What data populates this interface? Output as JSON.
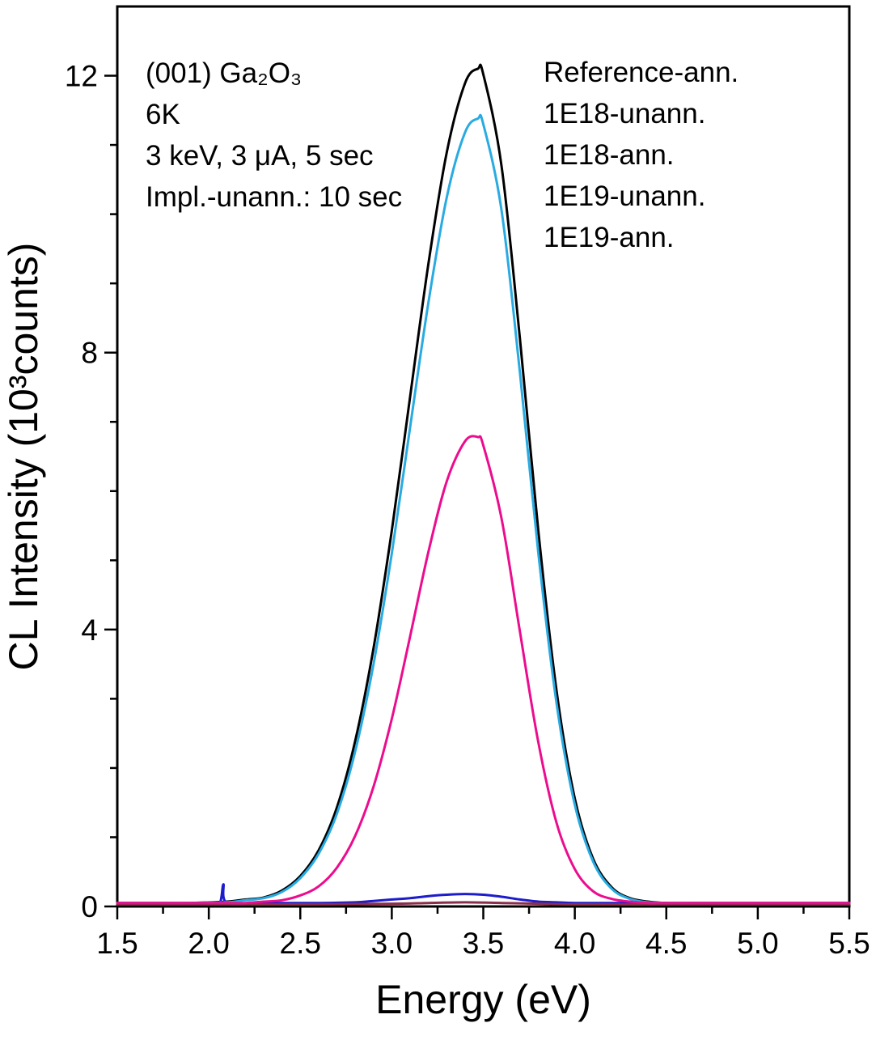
{
  "figure": {
    "background": "#ffffff"
  },
  "chart_data": {
    "type": "line",
    "title": "",
    "xlabel": "Energy (eV)",
    "ylabel": "CL Intensity (10³counts)",
    "xlim": [
      1.5,
      5.5
    ],
    "ylim": [
      0,
      13
    ],
    "grid": false,
    "legend_position": "top-right-inside",
    "x_major_ticks": [
      1.5,
      2.0,
      2.5,
      3.0,
      3.5,
      4.0,
      4.5,
      5.0,
      5.5
    ],
    "x_tick_labels": [
      "1.5",
      "2.0",
      "2.5",
      "3.0",
      "3.5",
      "4.0",
      "4.5",
      "5.0",
      "5.5"
    ],
    "x_minor_step": 0.25,
    "y_major_ticks": [
      0,
      4,
      8,
      12
    ],
    "y_tick_labels": [
      "0",
      "4",
      "8",
      "12"
    ],
    "y_minor_step": 1,
    "annotations": {
      "position": "top-left-inside",
      "lines": [
        "(001) Ga₂O₃",
        "6K",
        "3 keV, 3 μA, 5 sec",
        "Impl.-unann.: 10 sec"
      ]
    },
    "series": [
      {
        "name": "Reference-ann.",
        "color": "#000000",
        "peak_x": 3.47,
        "peak_y": 12.1,
        "x": [
          1.5,
          1.7,
          1.9,
          2.1,
          2.2,
          2.3,
          2.4,
          2.5,
          2.6,
          2.7,
          2.8,
          2.9,
          3.0,
          3.1,
          3.2,
          3.3,
          3.4,
          3.47,
          3.5,
          3.6,
          3.7,
          3.8,
          3.9,
          4.0,
          4.1,
          4.2,
          4.3,
          4.4,
          4.5,
          4.75,
          5.0,
          5.25,
          5.5
        ],
        "y": [
          0.05,
          0.05,
          0.05,
          0.07,
          0.1,
          0.13,
          0.23,
          0.44,
          0.81,
          1.43,
          2.39,
          3.73,
          5.43,
          7.36,
          9.28,
          10.89,
          11.89,
          12.1,
          12.02,
          10.69,
          8.2,
          5.44,
          3.12,
          1.56,
          0.69,
          0.28,
          0.12,
          0.07,
          0.05,
          0.05,
          0.05,
          0.05,
          0.05
        ]
      },
      {
        "name": "1E18-unann.",
        "color": "#1c1ccd",
        "peak_x": 3.4,
        "peak_y": 0.18,
        "x": [
          1.5,
          1.8,
          2.0,
          2.06,
          2.08,
          2.1,
          2.3,
          2.6,
          2.8,
          2.9,
          3.0,
          3.1,
          3.2,
          3.3,
          3.4,
          3.5,
          3.6,
          3.7,
          3.8,
          3.9,
          4.0,
          4.2,
          4.5,
          5.0,
          5.5
        ],
        "y": [
          0.05,
          0.05,
          0.05,
          0.05,
          0.32,
          0.05,
          0.05,
          0.05,
          0.06,
          0.08,
          0.1,
          0.12,
          0.15,
          0.17,
          0.18,
          0.17,
          0.14,
          0.1,
          0.07,
          0.06,
          0.05,
          0.05,
          0.05,
          0.05,
          0.05
        ]
      },
      {
        "name": "1E18-ann.",
        "color": "#29abe2",
        "peak_x": 3.47,
        "peak_y": 11.4,
        "x": [
          1.5,
          1.7,
          1.9,
          2.1,
          2.2,
          2.3,
          2.4,
          2.5,
          2.6,
          2.7,
          2.8,
          2.9,
          3.0,
          3.1,
          3.2,
          3.3,
          3.4,
          3.47,
          3.5,
          3.6,
          3.7,
          3.8,
          3.9,
          4.0,
          4.1,
          4.2,
          4.3,
          4.4,
          4.5,
          4.75,
          5.0,
          5.25,
          5.5
        ],
        "y": [
          0.05,
          0.05,
          0.05,
          0.06,
          0.09,
          0.12,
          0.21,
          0.41,
          0.76,
          1.34,
          2.24,
          3.5,
          5.1,
          6.92,
          8.72,
          10.24,
          11.18,
          11.38,
          11.3,
          10.05,
          7.71,
          5.12,
          2.94,
          1.47,
          0.65,
          0.26,
          0.11,
          0.06,
          0.05,
          0.05,
          0.05,
          0.05,
          0.05
        ]
      },
      {
        "name": "1E19-unann.",
        "color": "#8b2e4b",
        "peak_x": 3.4,
        "peak_y": 0.06,
        "x": [
          1.5,
          2.0,
          2.5,
          3.0,
          3.2,
          3.4,
          3.6,
          3.8,
          4.0,
          4.5,
          5.0,
          5.5
        ],
        "y": [
          0.03,
          0.03,
          0.03,
          0.04,
          0.05,
          0.06,
          0.05,
          0.04,
          0.03,
          0.03,
          0.03,
          0.03
        ]
      },
      {
        "name": "1E19-ann.",
        "color": "#ec0c8e",
        "peak_x": 3.45,
        "peak_y": 6.8,
        "x": [
          1.5,
          1.7,
          1.9,
          2.1,
          2.2,
          2.3,
          2.4,
          2.5,
          2.6,
          2.7,
          2.8,
          2.9,
          3.0,
          3.1,
          3.2,
          3.3,
          3.4,
          3.47,
          3.5,
          3.6,
          3.7,
          3.8,
          3.9,
          4.0,
          4.1,
          4.2,
          4.3,
          4.4,
          4.5,
          4.75,
          5.0,
          5.25,
          5.5
        ],
        "y": [
          0.05,
          0.05,
          0.05,
          0.05,
          0.05,
          0.07,
          0.09,
          0.16,
          0.29,
          0.56,
          1.02,
          1.73,
          2.71,
          3.9,
          5.12,
          6.14,
          6.72,
          6.78,
          6.66,
          5.6,
          3.97,
          2.38,
          1.21,
          0.54,
          0.22,
          0.11,
          0.07,
          0.05,
          0.05,
          0.05,
          0.05,
          0.05,
          0.05
        ]
      }
    ]
  }
}
